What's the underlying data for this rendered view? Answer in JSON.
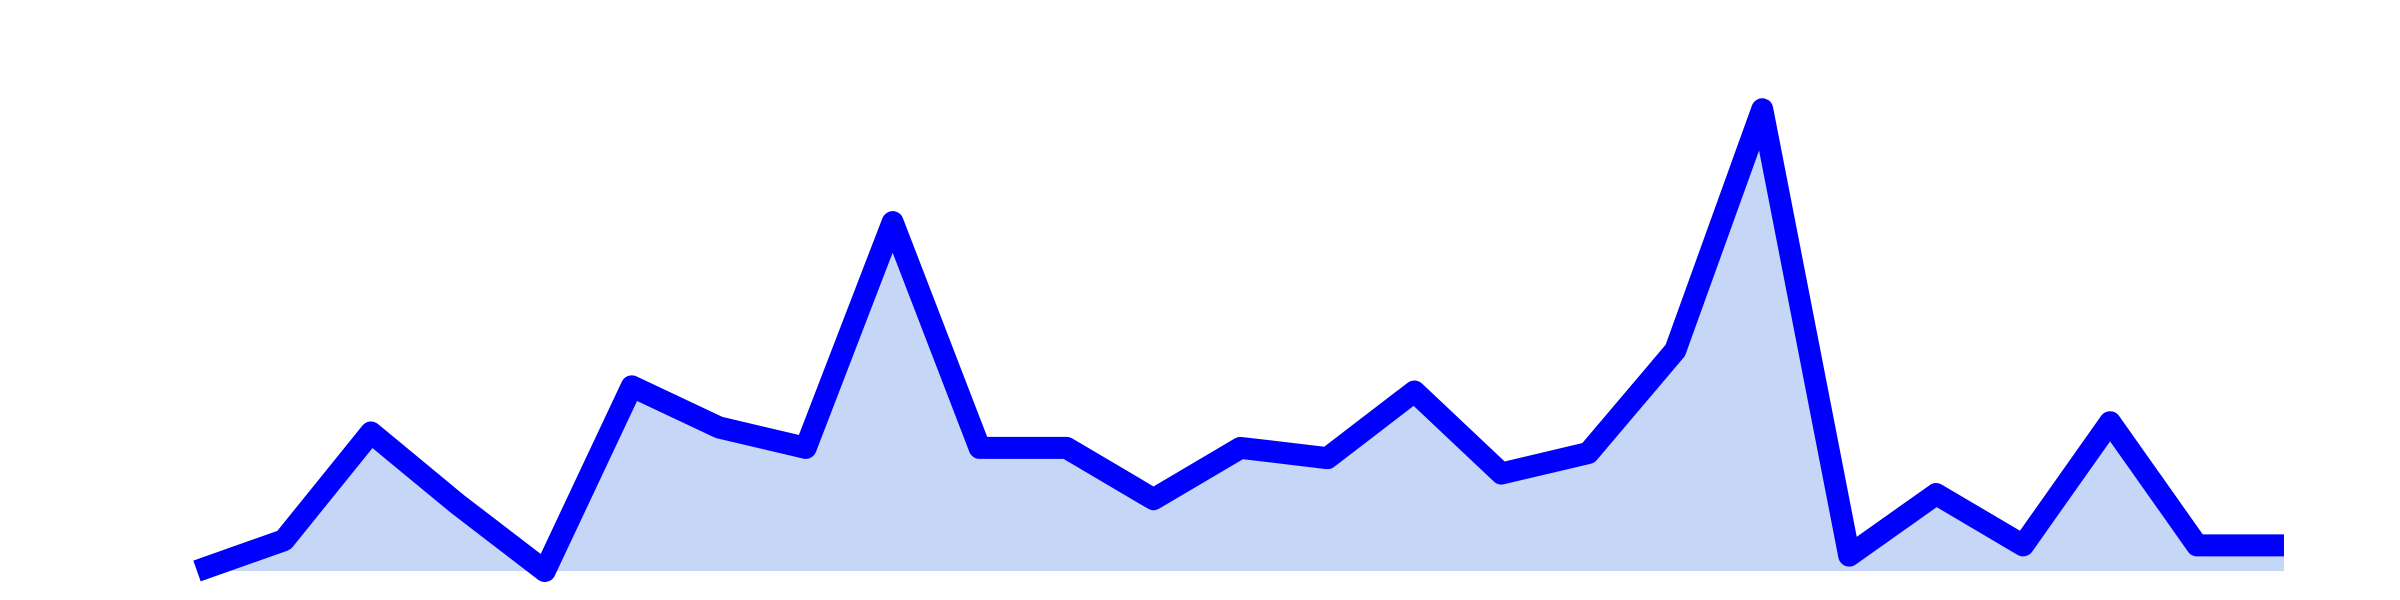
{
  "chart_data": {
    "type": "area",
    "x": [
      1,
      2,
      3,
      4,
      5,
      6,
      7,
      8,
      9,
      10,
      11,
      12,
      13,
      14,
      15,
      16,
      17,
      18,
      19,
      20,
      21,
      22,
      23,
      24,
      25
    ],
    "values": [
      0,
      6,
      27,
      13,
      0,
      36,
      28,
      24,
      68,
      24,
      24,
      14,
      24,
      22,
      35,
      19,
      23,
      43,
      90,
      3,
      15,
      5,
      29,
      5,
      5
    ],
    "ylim": [
      0,
      100
    ],
    "grid": false,
    "legend": "none",
    "line_color": "#0000ff",
    "fill_color": "#c5d6f6"
  }
}
